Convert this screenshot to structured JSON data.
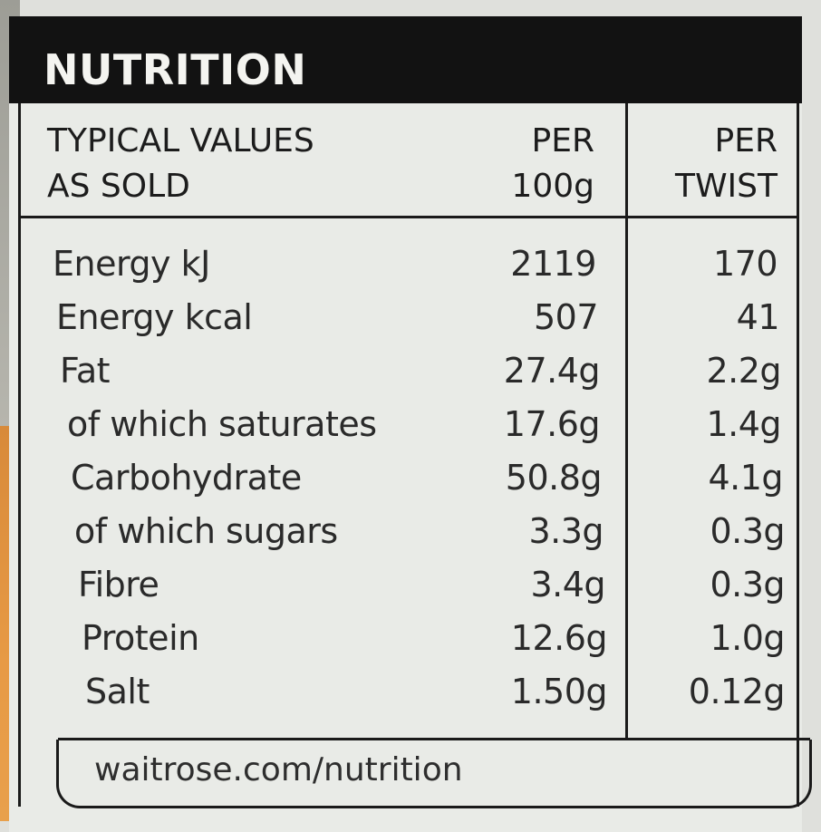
{
  "title": "NUTRITION",
  "columns": {
    "label_line1": "TYPICAL VALUES",
    "label_line2": "AS SOLD",
    "per100_line1": "PER",
    "per100_line2": "100g",
    "perTwist_line1": "PER",
    "perTwist_line2": "TWIST"
  },
  "rows": [
    {
      "label": "Energy kJ",
      "per100": "2119",
      "perTwist": "170"
    },
    {
      "label": "Energy kcal",
      "per100": "507",
      "perTwist": "41"
    },
    {
      "label": "Fat",
      "per100": "27.4g",
      "perTwist": "2.2g"
    },
    {
      "label": "of which saturates",
      "per100": "17.6g",
      "perTwist": "1.4g"
    },
    {
      "label": "Carbohydrate",
      "per100": "50.8g",
      "perTwist": "4.1g"
    },
    {
      "label": "of which sugars",
      "per100": "3.3g",
      "perTwist": "0.3g"
    },
    {
      "label": "Fibre",
      "per100": "3.4g",
      "perTwist": "0.3g"
    },
    {
      "label": "Protein",
      "per100": "12.6g",
      "perTwist": "1.0g"
    },
    {
      "label": "Salt",
      "per100": "1.50g",
      "perTwist": "0.12g"
    }
  ],
  "footer": "waitrose.com/nutrition"
}
